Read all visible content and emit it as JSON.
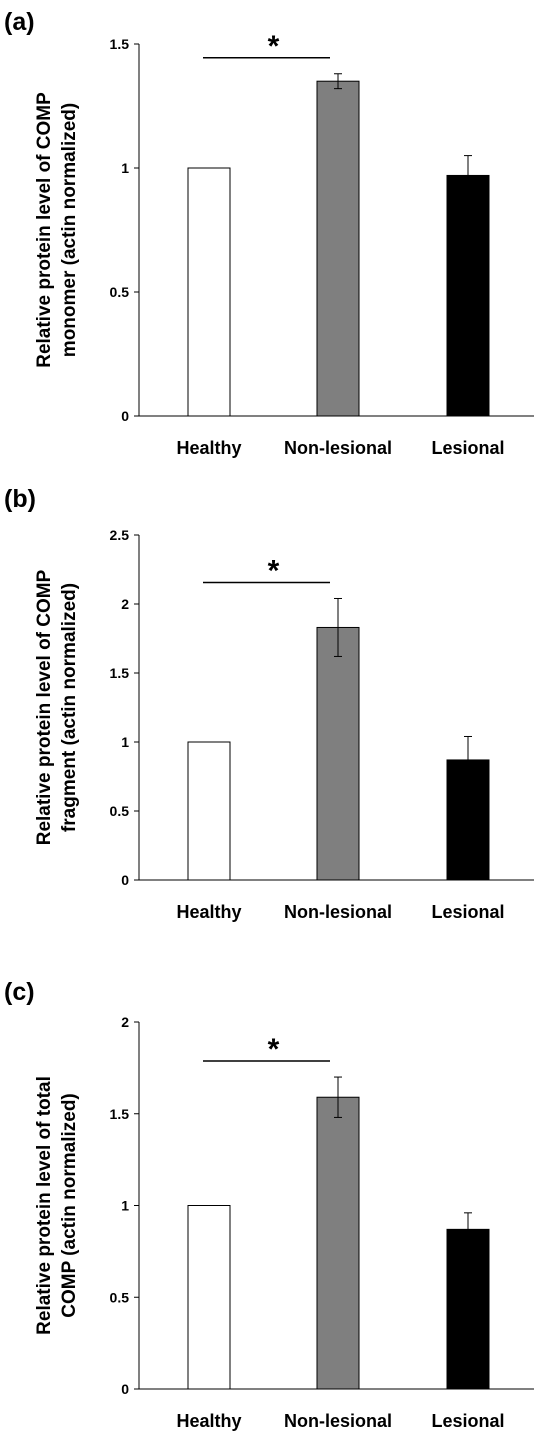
{
  "chart_data": [
    {
      "type": "bar",
      "panel": "(a)",
      "ylabel": [
        "Relative protein level of COMP",
        "monomer (actin normalized)"
      ],
      "categories": [
        "Healthy",
        "Non-lesional",
        "Lesional"
      ],
      "values": [
        1.0,
        1.35,
        0.97
      ],
      "errors": [
        0.0,
        0.03,
        0.08
      ],
      "colors": [
        "#ffffff",
        "#7f7f7f",
        "#000000"
      ],
      "ylim": [
        0,
        1.5
      ],
      "yticks": [
        0,
        0.5,
        1,
        1.5
      ],
      "ytick_labels": [
        "0",
        "0.5",
        "1",
        "1.5"
      ],
      "grid": false,
      "significance": {
        "from": 0,
        "to": 1,
        "label": "*"
      }
    },
    {
      "type": "bar",
      "panel": "(b)",
      "ylabel": [
        "Relative protein level of COMP",
        "fragment (actin normalized)"
      ],
      "categories": [
        "Healthy",
        "Non-lesional",
        "Lesional"
      ],
      "values": [
        1.0,
        1.83,
        0.87
      ],
      "errors": [
        0.0,
        0.21,
        0.17
      ],
      "colors": [
        "#ffffff",
        "#7f7f7f",
        "#000000"
      ],
      "ylim": [
        0,
        2.5
      ],
      "yticks": [
        0,
        0.5,
        1,
        1.5,
        2,
        2.5
      ],
      "ytick_labels": [
        "0",
        "0.5",
        "1",
        "1.5",
        "2",
        "2.5"
      ],
      "grid": false,
      "significance": {
        "from": 0,
        "to": 1,
        "label": "*"
      }
    },
    {
      "type": "bar",
      "panel": "(c)",
      "ylabel": [
        "Relative protein level of total",
        "COMP (actin normalized)"
      ],
      "categories": [
        "Healthy",
        "Non-lesional",
        "Lesional"
      ],
      "values": [
        1.0,
        1.59,
        0.87
      ],
      "errors": [
        0.0,
        0.11,
        0.09
      ],
      "colors": [
        "#ffffff",
        "#7f7f7f",
        "#000000"
      ],
      "ylim": [
        0,
        2
      ],
      "yticks": [
        0,
        0.5,
        1,
        1.5,
        2
      ],
      "ytick_labels": [
        "0",
        "0.5",
        "1",
        "1.5",
        "2"
      ],
      "grid": false,
      "significance": {
        "from": 0,
        "to": 1,
        "label": "*"
      }
    }
  ]
}
